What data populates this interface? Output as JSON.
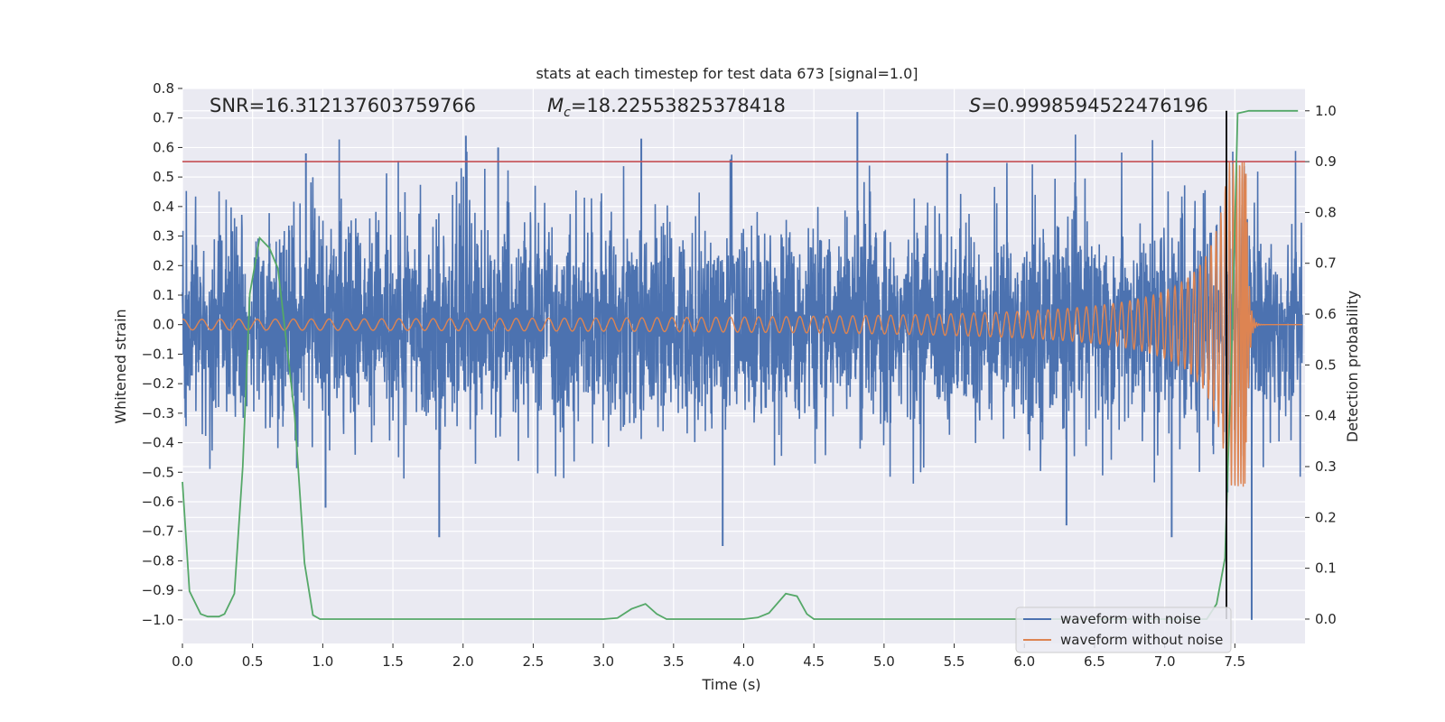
{
  "chart_data": {
    "type": "line",
    "title": "stats at each timestep for test data 673 [signal=1.0]",
    "xlabel": "Time (s)",
    "ylabel": "Whitened strain",
    "y2label": "Detection probability",
    "xlim": [
      0.0,
      8.0
    ],
    "ylim": [
      -1.08,
      0.8
    ],
    "y2lim": [
      -0.048,
      1.044
    ],
    "x_ticks": [
      0.0,
      0.5,
      1.0,
      1.5,
      2.0,
      2.5,
      3.0,
      3.5,
      4.0,
      4.5,
      5.0,
      5.5,
      6.0,
      6.5,
      7.0,
      7.5
    ],
    "x_tick_labels": [
      "0.0",
      "0.5",
      "1.0",
      "1.5",
      "2.0",
      "2.5",
      "3.0",
      "3.5",
      "4.0",
      "4.5",
      "5.0",
      "5.5",
      "6.0",
      "6.5",
      "7.0",
      "7.5"
    ],
    "y_ticks": [
      0.8,
      0.7,
      0.6,
      0.5,
      0.4,
      0.3,
      0.2,
      0.1,
      0.0,
      -0.1,
      -0.2,
      -0.3,
      -0.4,
      -0.5,
      -0.6,
      -0.7,
      -0.8,
      -0.9,
      -1.0
    ],
    "y_tick_labels": [
      "0.8",
      "0.7",
      "0.6",
      "0.5",
      "0.4",
      "0.3",
      "0.2",
      "0.1",
      "0.0",
      "−0.1",
      "−0.2",
      "−0.3",
      "−0.4",
      "−0.5",
      "−0.6",
      "−0.7",
      "−0.8",
      "−0.9",
      "−1.0"
    ],
    "y2_ticks": [
      1.0,
      0.9,
      0.8,
      0.7,
      0.6,
      0.5,
      0.4,
      0.3,
      0.2,
      0.1,
      0.0
    ],
    "y2_tick_labels": [
      "1.0",
      "0.9",
      "0.8",
      "0.7",
      "0.6",
      "0.5",
      "0.4",
      "0.3",
      "0.2",
      "0.1",
      "0.0"
    ],
    "stats": {
      "snr": "SNR=16.312137603759766",
      "mc_symbol": "M",
      "mc_sub": "c",
      "mc_value": "=18.22553825378418",
      "s_symbol": "S",
      "s_value": "=0.9998594522476196"
    },
    "threshold": 0.9,
    "merger_time": 7.44,
    "noise_envelope_abs": 0.3,
    "noise_spikes": [
      {
        "t": 1.83,
        "y": -0.72
      },
      {
        "t": 2.02,
        "y": 0.64
      },
      {
        "t": 3.27,
        "y": 0.63
      },
      {
        "t": 3.85,
        "y": -0.75
      },
      {
        "t": 4.81,
        "y": 0.72
      },
      {
        "t": 7.05,
        "y": -0.72
      },
      {
        "t": 7.62,
        "y": -1.0
      },
      {
        "t": 1.02,
        "y": -0.62
      },
      {
        "t": 0.88,
        "y": 0.58
      },
      {
        "t": 2.25,
        "y": 0.6
      },
      {
        "t": 5.45,
        "y": 0.58
      },
      {
        "t": 6.3,
        "y": -0.68
      }
    ],
    "series": [
      {
        "name": "waveform with noise",
        "color": "#4c72b0",
        "axis": "left",
        "description": "whitened strain with noise, dense oscillation roughly within ±0.3 with spikes up to ±0.7"
      },
      {
        "name": "waveform without noise",
        "color": "#dd8452",
        "axis": "left",
        "chirp": {
          "start_amp": 0.012,
          "peak_amp": 0.55,
          "peak_time": 7.58,
          "start_freq_hz": 4.5,
          "end_freq_hz": 60
        }
      },
      {
        "name": "detection probability",
        "color": "#55a868",
        "axis": "right",
        "x": [
          0.0,
          0.05,
          0.13,
          0.18,
          0.26,
          0.3,
          0.37,
          0.43,
          0.48,
          0.55,
          0.62,
          0.68,
          0.76,
          0.8,
          0.87,
          0.93,
          0.98,
          2.0,
          3.0,
          3.1,
          3.2,
          3.3,
          3.38,
          3.45,
          3.6,
          4.0,
          4.1,
          4.18,
          4.3,
          4.38,
          4.45,
          4.5,
          5.0,
          6.0,
          6.5,
          7.0,
          7.3,
          7.37,
          7.43,
          7.48,
          7.52,
          7.6,
          7.95
        ],
        "y": [
          0.27,
          0.055,
          0.01,
          0.005,
          0.005,
          0.01,
          0.05,
          0.3,
          0.64,
          0.75,
          0.73,
          0.69,
          0.5,
          0.4,
          0.11,
          0.008,
          0.0,
          0.0,
          0.0,
          0.002,
          0.02,
          0.03,
          0.01,
          0.0,
          0.0,
          0.0,
          0.003,
          0.012,
          0.05,
          0.045,
          0.01,
          0.0,
          0.0,
          0.0,
          0.0,
          0.0,
          0.0,
          0.03,
          0.12,
          0.55,
          0.995,
          1.0,
          1.0
        ]
      },
      {
        "name": "threshold",
        "color": "#c44e52",
        "axis": "right",
        "y": [
          0.9,
          0.9
        ]
      }
    ],
    "legend": {
      "position": "lower-right",
      "entries": [
        {
          "label": "waveform with noise",
          "color": "#4c72b0"
        },
        {
          "label": "waveform without noise",
          "color": "#dd8452"
        }
      ]
    },
    "style": {
      "background": "#eaeaf2",
      "grid": true,
      "grid_color": "#ffffff"
    }
  }
}
